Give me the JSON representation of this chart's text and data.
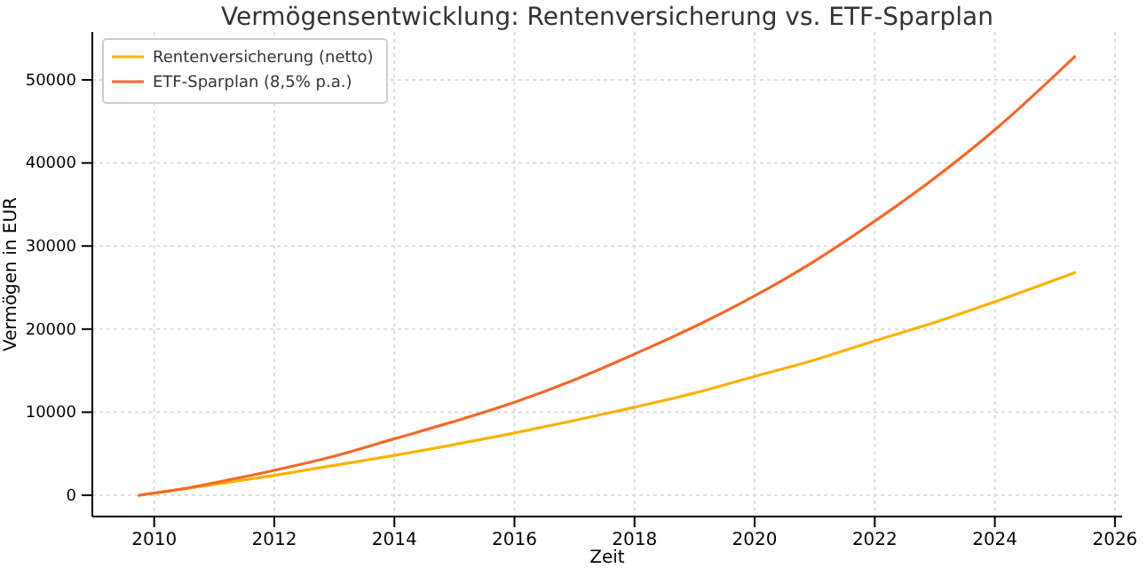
{
  "chart_data": {
    "type": "line",
    "title": "Vermögensentwicklung: Rentenversicherung vs. ETF-Sparplan",
    "xlabel": "Zeit",
    "ylabel": "Vermögen in EUR",
    "xlim": [
      2008.97,
      2026.12
    ],
    "xticks": [
      2010,
      2012,
      2014,
      2016,
      2018,
      2020,
      2022,
      2024,
      2026
    ],
    "ylim": [
      -2560,
      55770
    ],
    "yticks": [
      0,
      10000,
      20000,
      30000,
      40000,
      50000
    ],
    "grid": true,
    "legend": "top left",
    "line_style": "solid",
    "marker": "none",
    "series": [
      {
        "name": "Rentenversicherung (netto)",
        "color": "#ffb000",
        "x": [
          2009.75,
          2011,
          2012,
          2013,
          2014,
          2015,
          2016,
          2017,
          2018,
          2019,
          2020,
          2021,
          2022,
          2023,
          2024,
          2025.33
        ],
        "values": [
          0,
          1300,
          2400,
          3600,
          4800,
          6100,
          7500,
          9000,
          10600,
          12300,
          14300,
          16300,
          18600,
          20800,
          23300,
          26800
        ]
      },
      {
        "name": "ETF-Sparplan (8,5% p.a.)",
        "color": "#f4682a",
        "x": [
          2009.75,
          2010.5,
          2011,
          2012,
          2013,
          2014,
          2015,
          2016,
          2017,
          2018,
          2019,
          2020,
          2021,
          2022,
          2023,
          2024,
          2025.33
        ],
        "values": [
          0,
          800,
          1500,
          3000,
          4700,
          6800,
          8900,
          11200,
          13900,
          17000,
          20300,
          24000,
          28200,
          33000,
          38200,
          44000,
          52800
        ]
      }
    ]
  }
}
